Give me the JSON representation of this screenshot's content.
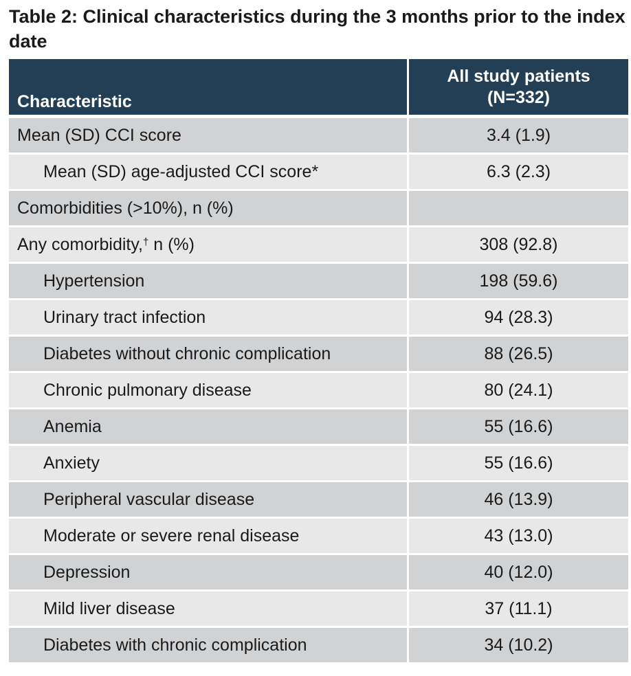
{
  "title": "Table 2: Clinical characteristics during the 3 months prior to the index date",
  "table": {
    "header": {
      "characteristic": "Characteristic",
      "col_line1": "All study patients",
      "col_line2": "(N=332)"
    },
    "rows": [
      {
        "label": "Mean (SD) CCI score",
        "value": "3.4 (1.9)",
        "indent": false
      },
      {
        "label": "Mean (SD) age-adjusted CCI score*",
        "value": "6.3 (2.3)",
        "indent": true
      },
      {
        "label": "Comorbidities (>10%), n (%)",
        "value": "",
        "indent": false
      },
      {
        "label": "Any comorbidity,",
        "sup": "†",
        "label_suffix": " n (%)",
        "value": "308 (92.8)",
        "indent": false
      },
      {
        "label": "Hypertension",
        "value": "198 (59.6)",
        "indent": true
      },
      {
        "label": "Urinary tract infection",
        "value": "94 (28.3)",
        "indent": true
      },
      {
        "label": "Diabetes without chronic complication",
        "value": "88 (26.5)",
        "indent": true
      },
      {
        "label": "Chronic pulmonary disease",
        "value": "80 (24.1)",
        "indent": true
      },
      {
        "label": "Anemia",
        "value": "55 (16.6)",
        "indent": true
      },
      {
        "label": "Anxiety",
        "value": "55 (16.6)",
        "indent": true
      },
      {
        "label": "Peripheral vascular disease",
        "value": "46 (13.9)",
        "indent": true
      },
      {
        "label": "Moderate or severe renal disease",
        "value": "43 (13.0)",
        "indent": true
      },
      {
        "label": "Depression",
        "value": "40 (12.0)",
        "indent": true
      },
      {
        "label": "Mild liver disease",
        "value": "37 (11.1)",
        "indent": true
      },
      {
        "label": "Diabetes with chronic complication",
        "value": "34 (10.2)",
        "indent": true
      }
    ]
  }
}
